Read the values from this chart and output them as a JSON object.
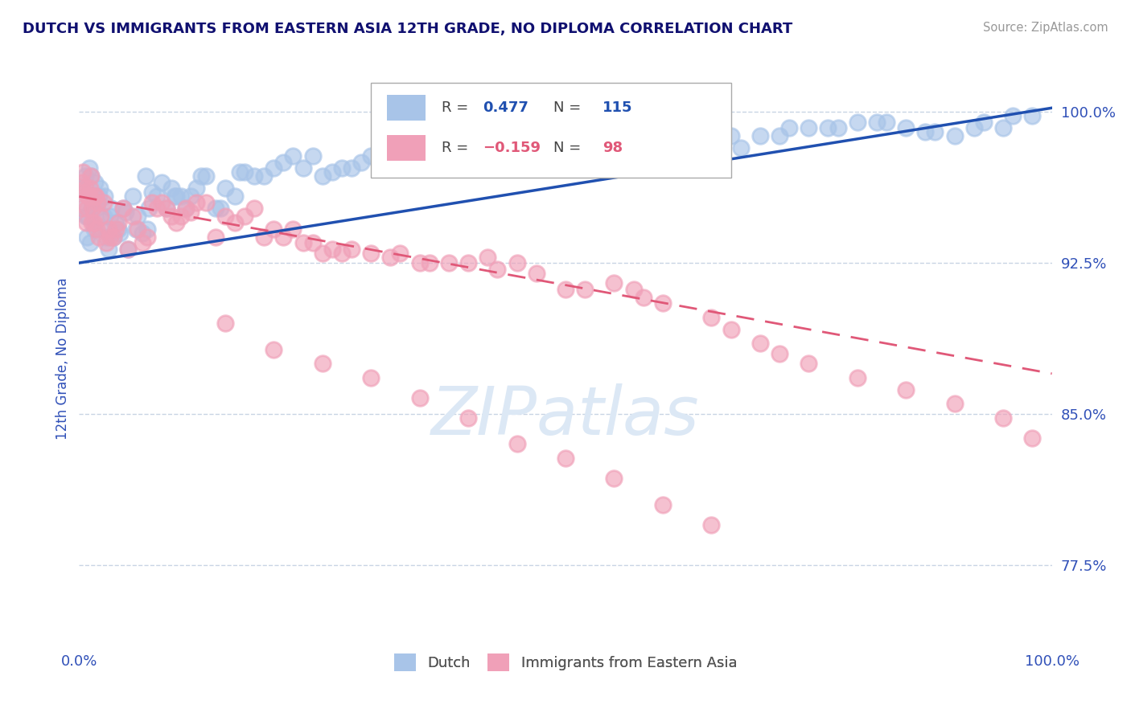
{
  "title": "DUTCH VS IMMIGRANTS FROM EASTERN ASIA 12TH GRADE, NO DIPLOMA CORRELATION CHART",
  "source": "Source: ZipAtlas.com",
  "ylabel": "12th Grade, No Diploma",
  "x_min": 0.0,
  "x_max": 100.0,
  "y_min": 73.5,
  "y_max": 102.0,
  "ytick_labels": [
    "77.5%",
    "85.0%",
    "92.5%",
    "100.0%"
  ],
  "ytick_values": [
    77.5,
    85.0,
    92.5,
    100.0
  ],
  "xtick_labels": [
    "0.0%",
    "100.0%"
  ],
  "xtick_values": [
    0.0,
    100.0
  ],
  "series1_color": "#a8c4e8",
  "series2_color": "#f0a0b8",
  "line1_color": "#2050b0",
  "line2_color": "#e05878",
  "watermark": "ZIPatlas",
  "watermark_color": "#dce8f5",
  "title_color": "#101070",
  "axis_color": "#3050b8",
  "grid_color": "#c8d4e4",
  "legend_color1": "#2050b0",
  "legend_color2": "#e05878",
  "dutch_x": [
    0.3,
    0.5,
    0.6,
    0.7,
    0.8,
    0.9,
    1.0,
    1.1,
    1.2,
    1.3,
    1.4,
    1.5,
    1.6,
    1.8,
    1.9,
    2.0,
    2.1,
    2.2,
    2.5,
    2.6,
    2.8,
    3.0,
    3.2,
    3.3,
    3.5,
    3.8,
    4.0,
    4.2,
    4.5,
    4.8,
    5.0,
    5.5,
    5.8,
    6.0,
    6.5,
    6.8,
    7.0,
    7.2,
    7.5,
    8.0,
    8.5,
    9.0,
    9.5,
    9.8,
    10.0,
    10.5,
    11.0,
    11.5,
    12.0,
    12.5,
    13.0,
    14.0,
    14.5,
    15.0,
    16.0,
    16.5,
    17.0,
    18.0,
    19.0,
    20.0,
    21.0,
    22.0,
    23.0,
    24.0,
    25.0,
    26.0,
    27.0,
    28.0,
    29.0,
    30.0,
    32.0,
    33.0,
    35.0,
    36.0,
    37.0,
    38.0,
    40.0,
    42.0,
    43.0,
    45.0,
    46.0,
    47.0,
    48.0,
    50.0,
    52.0,
    53.0,
    55.0,
    56.0,
    57.0,
    58.0,
    60.0,
    61.0,
    63.0,
    65.0,
    67.0,
    68.0,
    70.0,
    72.0,
    73.0,
    75.0,
    77.0,
    78.0,
    80.0,
    82.0,
    83.0,
    85.0,
    87.0,
    88.0,
    90.0,
    92.0,
    93.0,
    95.0,
    96.0,
    98.0
  ],
  "dutch_y": [
    96.2,
    95.5,
    96.8,
    94.8,
    93.8,
    94.8,
    97.2,
    93.5,
    96.8,
    95.2,
    95.8,
    94.2,
    96.5,
    95.2,
    95.5,
    95.8,
    96.2,
    94.2,
    94.8,
    95.8,
    93.8,
    93.2,
    94.8,
    95.2,
    93.8,
    94.5,
    94.2,
    94.0,
    95.2,
    95.0,
    93.2,
    95.8,
    94.2,
    94.8,
    94.0,
    96.8,
    94.2,
    95.2,
    96.0,
    95.8,
    96.5,
    95.2,
    96.2,
    95.8,
    95.8,
    95.8,
    95.2,
    95.8,
    96.2,
    96.8,
    96.8,
    95.2,
    95.2,
    96.2,
    95.8,
    97.0,
    97.0,
    96.8,
    96.8,
    97.2,
    97.5,
    97.8,
    97.2,
    97.8,
    96.8,
    97.0,
    97.2,
    97.2,
    97.5,
    97.8,
    97.8,
    97.8,
    98.2,
    98.0,
    98.0,
    97.8,
    97.2,
    97.5,
    97.5,
    98.8,
    98.5,
    98.8,
    98.0,
    98.2,
    98.5,
    98.8,
    98.8,
    98.5,
    98.5,
    97.8,
    97.8,
    97.8,
    98.2,
    98.2,
    98.8,
    98.2,
    98.8,
    98.8,
    99.2,
    99.2,
    99.2,
    99.2,
    99.5,
    99.5,
    99.5,
    99.2,
    99.0,
    99.0,
    98.8,
    99.2,
    99.5,
    99.2,
    99.8,
    99.8
  ],
  "imm_x": [
    0.2,
    0.3,
    0.4,
    0.5,
    0.6,
    0.7,
    0.8,
    0.9,
    1.0,
    1.1,
    1.2,
    1.3,
    1.4,
    1.5,
    1.6,
    1.7,
    1.8,
    1.9,
    2.0,
    2.2,
    2.5,
    2.8,
    3.0,
    3.2,
    3.5,
    3.8,
    4.0,
    4.5,
    5.0,
    5.5,
    6.0,
    6.5,
    7.0,
    7.5,
    8.0,
    8.5,
    9.0,
    9.5,
    10.0,
    10.5,
    11.0,
    11.5,
    12.0,
    13.0,
    14.0,
    15.0,
    16.0,
    17.0,
    18.0,
    19.0,
    20.0,
    21.0,
    22.0,
    23.0,
    24.0,
    25.0,
    26.0,
    27.0,
    28.0,
    30.0,
    32.0,
    33.0,
    35.0,
    36.0,
    38.0,
    40.0,
    42.0,
    43.0,
    45.0,
    47.0,
    50.0,
    52.0,
    55.0,
    57.0,
    58.0,
    60.0,
    65.0,
    67.0,
    70.0,
    72.0,
    75.0,
    80.0,
    85.0,
    90.0,
    95.0,
    98.0,
    15.0,
    20.0,
    25.0,
    30.0,
    35.0,
    40.0,
    45.0,
    50.0,
    55.0,
    60.0,
    65.0
  ],
  "imm_y": [
    95.2,
    96.5,
    97.0,
    96.0,
    96.2,
    94.5,
    95.2,
    95.8,
    95.8,
    96.2,
    96.8,
    94.5,
    95.2,
    94.5,
    95.8,
    95.8,
    94.2,
    95.5,
    93.8,
    94.8,
    95.5,
    93.5,
    94.2,
    93.8,
    93.8,
    94.2,
    94.5,
    95.2,
    93.2,
    94.8,
    94.2,
    93.5,
    93.8,
    95.5,
    95.2,
    95.5,
    95.2,
    94.8,
    94.5,
    94.8,
    95.2,
    95.0,
    95.5,
    95.5,
    93.8,
    94.8,
    94.5,
    94.8,
    95.2,
    93.8,
    94.2,
    93.8,
    94.2,
    93.5,
    93.5,
    93.0,
    93.2,
    93.0,
    93.2,
    93.0,
    92.8,
    93.0,
    92.5,
    92.5,
    92.5,
    92.5,
    92.8,
    92.2,
    92.5,
    92.0,
    91.2,
    91.2,
    91.5,
    91.2,
    90.8,
    90.5,
    89.8,
    89.2,
    88.5,
    88.0,
    87.5,
    86.8,
    86.2,
    85.5,
    84.8,
    83.8,
    89.5,
    88.2,
    87.5,
    86.8,
    85.8,
    84.8,
    83.5,
    82.8,
    81.8,
    80.5,
    79.5
  ],
  "line1_x_start": 0.0,
  "line1_x_end": 100.0,
  "line1_y_start": 92.5,
  "line1_y_end": 100.2,
  "line2_x_start": 0.0,
  "line2_x_end": 100.0,
  "line2_y_start": 95.8,
  "line2_y_end": 87.0
}
